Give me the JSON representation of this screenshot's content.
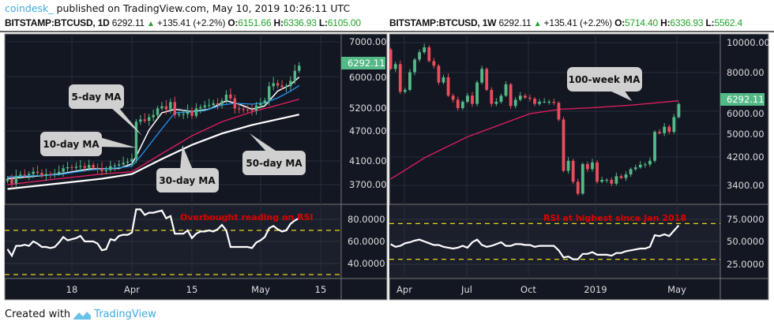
{
  "header": {
    "author": "coindesk_",
    "published": "published on TradingView.com, May 10, 2019 10:26:11 UTC"
  },
  "left": {
    "symbol": "BITSTAMP:BTCUSD, 1D",
    "last": "6292.11",
    "change": "+135.41 (+2.2%)",
    "o_label": "O:",
    "o": "6151.66",
    "h_label": "H:",
    "h": "6336.93",
    "l_label": "L:",
    "l": "6105.00",
    "price_badge": "6292.11",
    "price_ticks": [
      "7000.00",
      "6000.00",
      "5200.00",
      "4700.00",
      "4100.00",
      "3700.00"
    ],
    "rsi_ticks": [
      "80.0000",
      "60.0000",
      "40.0000"
    ],
    "time_ticks": [
      "18",
      "Apr",
      "15",
      "May",
      "15"
    ],
    "callouts": {
      "ma5": "5-day MA",
      "ma10": "10-day MA",
      "ma30": "30-day MA",
      "ma50": "50-day MA"
    },
    "rsi_note": "Overbought reading on RSI"
  },
  "right": {
    "symbol": "BITSTAMP:BTCUSD, 1W",
    "last": "6292.11",
    "change": "+135.41 (+2.2%)",
    "o_label": "O:",
    "o": "5714.40",
    "h_label": "H:",
    "h": "6336.93",
    "l_label": "L:",
    "l": "5562.4",
    "price_badge": "6292.11",
    "price_ticks": [
      "10000.00",
      "8000.00",
      "6000.00",
      "5000.00",
      "4200.00",
      "3400.00"
    ],
    "rsi_ticks": [
      "75.0000",
      "50.0000",
      "25.0000"
    ],
    "time_ticks": [
      "Apr",
      "Jul",
      "Oct",
      "2019",
      "May"
    ],
    "callouts": {
      "ma100": "100-week MA"
    },
    "rsi_note": "RSI at highest since Jan 2018"
  },
  "footer": {
    "created": "Created with",
    "brand": "TradingView"
  },
  "colors": {
    "bg": "#131722",
    "up": "#53b987",
    "down": "#eb4d5c",
    "ma_white": "#ffffff",
    "ma_blue": "#2196f3",
    "ma_red": "#e91e63",
    "rsi_band": "#e8d51f",
    "note": "#e00000",
    "badge": "#53b987"
  },
  "chart_data": [
    {
      "type": "candlestick",
      "timeframe": "1D",
      "scale": "log",
      "ylim": [
        3550,
        7300
      ],
      "grid": true,
      "closes": [
        [
          "2019-03-03",
          3800
        ],
        [
          "2019-03-04",
          3720
        ],
        [
          "2019-03-05",
          3850
        ],
        [
          "2019-03-06",
          3870
        ],
        [
          "2019-03-07",
          3860
        ],
        [
          "2019-03-08",
          3880
        ],
        [
          "2019-03-09",
          3920
        ],
        [
          "2019-03-10",
          3900
        ],
        [
          "2019-03-11",
          3850
        ],
        [
          "2019-03-12",
          3880
        ],
        [
          "2019-03-13",
          3870
        ],
        [
          "2019-03-14",
          3890
        ],
        [
          "2019-03-15",
          3920
        ],
        [
          "2019-03-16",
          3980
        ],
        [
          "2019-03-17",
          4000
        ],
        [
          "2019-03-18",
          3990
        ],
        [
          "2019-03-19",
          4010
        ],
        [
          "2019-03-20",
          4020
        ],
        [
          "2019-03-21",
          3990
        ],
        [
          "2019-03-22",
          4040
        ],
        [
          "2019-03-23",
          3990
        ],
        [
          "2019-03-24",
          3980
        ],
        [
          "2019-03-25",
          3930
        ],
        [
          "2019-03-26",
          3950
        ],
        [
          "2019-03-27",
          4020
        ],
        [
          "2019-03-28",
          4030
        ],
        [
          "2019-03-29",
          4050
        ],
        [
          "2019-03-30",
          4080
        ],
        [
          "2019-03-31",
          4100
        ],
        [
          "2019-04-01",
          4150
        ],
        [
          "2019-04-02",
          4900
        ],
        [
          "2019-04-03",
          4950
        ],
        [
          "2019-04-04",
          4920
        ],
        [
          "2019-04-05",
          5000
        ],
        [
          "2019-04-06",
          5050
        ],
        [
          "2019-04-07",
          5200
        ],
        [
          "2019-04-08",
          5250
        ],
        [
          "2019-04-09",
          5180
        ],
        [
          "2019-04-10",
          5350
        ],
        [
          "2019-04-11",
          5050
        ],
        [
          "2019-04-12",
          5070
        ],
        [
          "2019-04-13",
          5070
        ],
        [
          "2019-04-14",
          5150
        ],
        [
          "2019-04-15",
          5030
        ],
        [
          "2019-04-16",
          5200
        ],
        [
          "2019-04-17",
          5230
        ],
        [
          "2019-04-18",
          5270
        ],
        [
          "2019-04-19",
          5280
        ],
        [
          "2019-04-20",
          5320
        ],
        [
          "2019-04-21",
          5290
        ],
        [
          "2019-04-22",
          5380
        ],
        [
          "2019-04-23",
          5530
        ],
        [
          "2019-04-24",
          5440
        ],
        [
          "2019-04-25",
          5200
        ],
        [
          "2019-04-26",
          5180
        ],
        [
          "2019-04-27",
          5170
        ],
        [
          "2019-04-28",
          5160
        ],
        [
          "2019-04-29",
          5150
        ],
        [
          "2019-04-30",
          5270
        ],
        [
          "2019-05-01",
          5320
        ],
        [
          "2019-05-02",
          5390
        ],
        [
          "2019-05-03",
          5740
        ],
        [
          "2019-05-04",
          5820
        ],
        [
          "2019-05-05",
          5760
        ],
        [
          "2019-05-06",
          5720
        ],
        [
          "2019-05-07",
          5740
        ],
        [
          "2019-05-08",
          5880
        ],
        [
          "2019-05-09",
          6150
        ],
        [
          "2019-05-10",
          6292.11
        ]
      ],
      "moving_averages": [
        {
          "name": "5-day MA",
          "color": "#ffffff",
          "points": [
            [
              "2019-03-03",
              3800
            ],
            [
              "2019-03-15",
              3880
            ],
            [
              "2019-03-22",
              3970
            ],
            [
              "2019-03-29",
              3980
            ],
            [
              "2019-04-01",
              4060
            ],
            [
              "2019-04-02",
              4200
            ],
            [
              "2019-04-05",
              4720
            ],
            [
              "2019-04-08",
              5100
            ],
            [
              "2019-04-11",
              5180
            ],
            [
              "2019-04-15",
              5130
            ],
            [
              "2019-04-19",
              5180
            ],
            [
              "2019-04-23",
              5380
            ],
            [
              "2019-04-26",
              5300
            ],
            [
              "2019-04-29",
              5180
            ],
            [
              "2019-05-02",
              5260
            ],
            [
              "2019-05-05",
              5620
            ],
            [
              "2019-05-08",
              5780
            ],
            [
              "2019-05-10",
              5980
            ]
          ]
        },
        {
          "name": "10-day MA",
          "color": "#2196f3",
          "points": [
            [
              "2019-03-03",
              3830
            ],
            [
              "2019-03-15",
              3870
            ],
            [
              "2019-03-22",
              3950
            ],
            [
              "2019-03-29",
              3990
            ],
            [
              "2019-04-01",
              4020
            ],
            [
              "2019-04-03",
              4200
            ],
            [
              "2019-04-08",
              4750
            ],
            [
              "2019-04-11",
              5100
            ],
            [
              "2019-04-15",
              5120
            ],
            [
              "2019-04-18",
              5150
            ],
            [
              "2019-04-22",
              5280
            ],
            [
              "2019-04-25",
              5320
            ],
            [
              "2019-04-29",
              5300
            ],
            [
              "2019-05-02",
              5330
            ],
            [
              "2019-05-05",
              5450
            ],
            [
              "2019-05-08",
              5620
            ],
            [
              "2019-05-10",
              5760
            ]
          ]
        },
        {
          "name": "30-day MA",
          "color": "#e91e63",
          "points": [
            [
              "2019-03-03",
              3700
            ],
            [
              "2019-03-15",
              3800
            ],
            [
              "2019-03-25",
              3880
            ],
            [
              "2019-04-01",
              3920
            ],
            [
              "2019-04-08",
              4250
            ],
            [
              "2019-04-15",
              4600
            ],
            [
              "2019-04-22",
              4900
            ],
            [
              "2019-04-29",
              5120
            ],
            [
              "2019-05-04",
              5250
            ],
            [
              "2019-05-10",
              5420
            ]
          ]
        },
        {
          "name": "50-day MA",
          "color": "#ffffff",
          "points": [
            [
              "2019-03-03",
              3630
            ],
            [
              "2019-03-15",
              3720
            ],
            [
              "2019-03-25",
              3800
            ],
            [
              "2019-04-01",
              3880
            ],
            [
              "2019-04-08",
              4150
            ],
            [
              "2019-04-15",
              4420
            ],
            [
              "2019-04-22",
              4650
            ],
            [
              "2019-04-29",
              4830
            ],
            [
              "2019-05-10",
              5060
            ]
          ]
        }
      ],
      "rsi": {
        "ylim": [
          25,
          95
        ],
        "bands": [
          70,
          30
        ],
        "values": [
          53,
          47,
          56,
          56,
          57,
          56,
          60,
          58,
          55,
          55,
          54,
          55,
          59,
          64,
          61,
          62,
          63,
          65,
          60,
          60,
          60,
          58,
          52,
          53,
          62,
          61,
          65,
          66,
          66,
          68,
          89,
          89,
          84,
          86,
          86,
          87,
          88,
          81,
          83,
          67,
          67,
          67,
          70,
          63,
          67,
          69,
          69,
          70,
          69,
          71,
          75,
          70,
          55,
          55,
          55,
          55,
          55,
          54,
          59,
          61,
          64,
          72,
          74,
          71,
          69,
          70,
          76,
          79,
          81
        ]
      }
    },
    {
      "type": "candlestick",
      "timeframe": "1W",
      "scale": "log",
      "ylim": [
        3100,
        10400
      ],
      "grid": true,
      "first_open": 9500,
      "closes": [
        [
          "2018-03-12",
          8200
        ],
        [
          "2018-03-19",
          8500
        ],
        [
          "2018-03-26",
          6900
        ],
        [
          "2018-04-02",
          7000
        ],
        [
          "2018-04-09",
          8000
        ],
        [
          "2018-04-16",
          8800
        ],
        [
          "2018-04-23",
          9300
        ],
        [
          "2018-04-30",
          9650
        ],
        [
          "2018-05-07",
          8700
        ],
        [
          "2018-05-14",
          8400
        ],
        [
          "2018-05-21",
          7400
        ],
        [
          "2018-05-28",
          7700
        ],
        [
          "2018-06-04",
          6700
        ],
        [
          "2018-06-11",
          6500
        ],
        [
          "2018-06-18",
          6100
        ],
        [
          "2018-06-25",
          6400
        ],
        [
          "2018-07-02",
          6700
        ],
        [
          "2018-07-09",
          6300
        ],
        [
          "2018-07-16",
          7400
        ],
        [
          "2018-07-23",
          8200
        ],
        [
          "2018-07-30",
          7000
        ],
        [
          "2018-08-06",
          6300
        ],
        [
          "2018-08-13",
          6400
        ],
        [
          "2018-08-20",
          6700
        ],
        [
          "2018-08-27",
          7300
        ],
        [
          "2018-09-03",
          6200
        ],
        [
          "2018-09-10",
          6500
        ],
        [
          "2018-09-17",
          6700
        ],
        [
          "2018-09-24",
          6600
        ],
        [
          "2018-10-01",
          6550
        ],
        [
          "2018-10-08",
          6300
        ],
        [
          "2018-10-15",
          6400
        ],
        [
          "2018-10-22",
          6400
        ],
        [
          "2018-10-29",
          6400
        ],
        [
          "2018-11-05",
          6350
        ],
        [
          "2018-11-12",
          5600
        ],
        [
          "2018-11-19",
          3800
        ],
        [
          "2018-11-26",
          4100
        ],
        [
          "2018-12-03",
          3500
        ],
        [
          "2018-12-10",
          3200
        ],
        [
          "2018-12-17",
          4000
        ],
        [
          "2018-12-24",
          3850
        ],
        [
          "2018-12-31",
          4050
        ],
        [
          "2019-01-07",
          3500
        ],
        [
          "2019-01-14",
          3550
        ],
        [
          "2019-01-21",
          3550
        ],
        [
          "2019-01-28",
          3450
        ],
        [
          "2019-02-04",
          3650
        ],
        [
          "2019-02-11",
          3600
        ],
        [
          "2019-02-18",
          3700
        ],
        [
          "2019-02-25",
          3850
        ],
        [
          "2019-03-04",
          3900
        ],
        [
          "2019-03-11",
          3980
        ],
        [
          "2019-03-18",
          3990
        ],
        [
          "2019-03-25",
          4100
        ],
        [
          "2019-04-01",
          5100
        ],
        [
          "2019-04-08",
          5050
        ],
        [
          "2019-04-15",
          5300
        ],
        [
          "2019-04-22",
          5100
        ],
        [
          "2019-04-29",
          5700
        ],
        [
          "2019-05-06",
          6292.11
        ]
      ],
      "moving_averages": [
        {
          "name": "100-week MA",
          "color": "#e91e63",
          "points": [
            [
              "2018-03-12",
              3570
            ],
            [
              "2018-05-01",
              4200
            ],
            [
              "2018-07-01",
              4900
            ],
            [
              "2018-10-01",
              5850
            ],
            [
              "2018-11-15",
              6050
            ],
            [
              "2019-01-01",
              6120
            ],
            [
              "2019-03-01",
              6250
            ],
            [
              "2019-05-06",
              6450
            ]
          ]
        }
      ],
      "rsi": {
        "ylim": [
          10,
          90
        ],
        "bands": [
          70,
          30
        ],
        "values": [
          47,
          44,
          45,
          48,
          49,
          51,
          52,
          50,
          48,
          46,
          46,
          44,
          43,
          42,
          43,
          45,
          43,
          49,
          52,
          46,
          44,
          45,
          47,
          49,
          45,
          45,
          47,
          47,
          46,
          46,
          44,
          45,
          45,
          45,
          45,
          40,
          32,
          33,
          30,
          30,
          36,
          36,
          38,
          35,
          35,
          35,
          34,
          37,
          37,
          39,
          40,
          41,
          42,
          42,
          44,
          57,
          56,
          58,
          56,
          62,
          68
        ]
      }
    }
  ]
}
